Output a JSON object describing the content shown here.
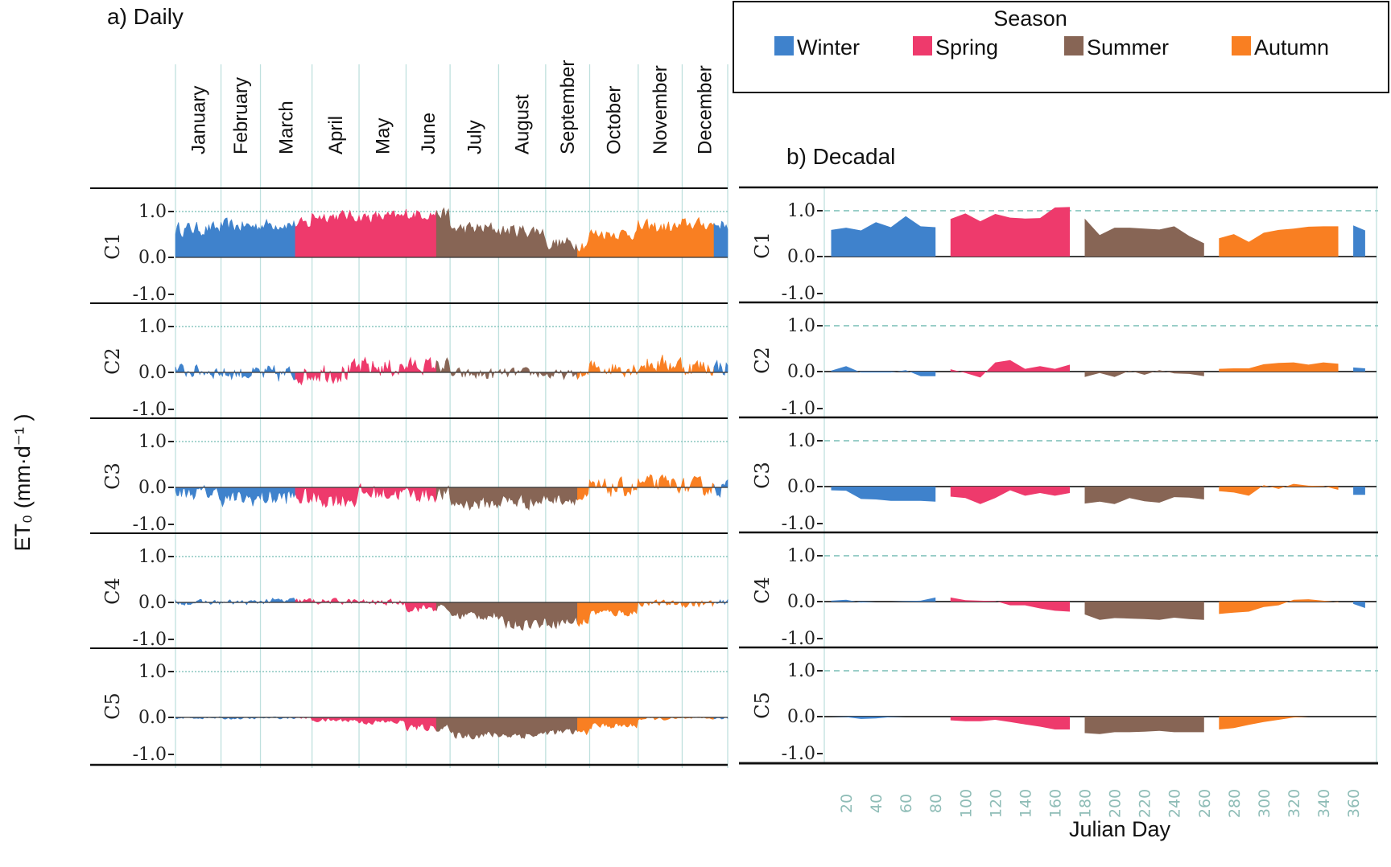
{
  "chart_data": {
    "type": "area",
    "legend": {
      "title": "Season",
      "placement": "top-right",
      "entries": [
        {
          "name": "Winter",
          "color": "#3f82cc"
        },
        {
          "name": "Spring",
          "color": "#ee3a6c"
        },
        {
          "name": "Summer",
          "color": "#876555"
        },
        {
          "name": "Autumn",
          "color": "#f97f22"
        }
      ]
    },
    "ylabel": "ET₀ (mm·d⁻¹ )",
    "components": [
      "C1",
      "C2",
      "C3",
      "C4",
      "C5"
    ],
    "yticks": [
      "1.0",
      "0.0",
      "-1.0"
    ],
    "ytick_values": [
      1.0,
      0.0,
      -1.0
    ],
    "reference_line": 1.0,
    "daily": {
      "title": "a)  Daily",
      "months": [
        "January",
        "February",
        "March",
        "April",
        "May",
        "June",
        "July",
        "August",
        "September",
        "October",
        "November",
        "December"
      ],
      "month_gridlines_day": [
        1,
        31,
        57,
        91,
        122,
        153,
        182,
        214,
        245,
        274,
        306,
        335,
        365
      ],
      "season_bounds_day": [
        {
          "season": "Winter",
          "start": 1,
          "end": 80
        },
        {
          "season": "Spring",
          "start": 80,
          "end": 173
        },
        {
          "season": "Summer",
          "start": 173,
          "end": 266
        },
        {
          "season": "Autumn",
          "start": 266,
          "end": 356
        },
        {
          "season": "Winter",
          "start": 356,
          "end": 365
        }
      ],
      "note": "approximate monthly mean level and day-to-day noise amplitude read from the daily series",
      "series": [
        {
          "name": "C1",
          "monthly_mean": [
            0.62,
            0.68,
            0.72,
            0.9,
            0.88,
            0.95,
            0.62,
            0.58,
            0.3,
            0.52,
            0.65,
            0.72
          ],
          "noise": [
            0.14,
            0.14,
            0.12,
            0.12,
            0.12,
            0.12,
            0.14,
            0.14,
            0.14,
            0.12,
            0.14,
            0.12
          ]
        },
        {
          "name": "C2",
          "monthly_mean": [
            0.03,
            -0.02,
            -0.05,
            0.02,
            0.1,
            0.15,
            -0.05,
            -0.02,
            -0.06,
            0.1,
            0.18,
            0.12
          ],
          "noise": [
            0.14,
            0.14,
            0.18,
            0.22,
            0.2,
            0.16,
            0.12,
            0.1,
            0.1,
            0.16,
            0.18,
            0.18
          ]
        },
        {
          "name": "C3",
          "monthly_mean": [
            -0.12,
            -0.25,
            -0.22,
            -0.25,
            -0.12,
            -0.15,
            -0.35,
            -0.3,
            -0.25,
            -0.02,
            0.08,
            0.0
          ],
          "noise": [
            0.14,
            0.16,
            0.18,
            0.18,
            0.16,
            0.16,
            0.14,
            0.16,
            0.12,
            0.18,
            0.16,
            0.18
          ]
        },
        {
          "name": "C4",
          "monthly_mean": [
            0.0,
            0.0,
            0.03,
            0.02,
            0.0,
            -0.12,
            -0.28,
            -0.45,
            -0.42,
            -0.22,
            -0.02,
            -0.03
          ],
          "noise": [
            0.05,
            0.05,
            0.06,
            0.06,
            0.06,
            0.08,
            0.1,
            0.12,
            0.12,
            0.08,
            0.06,
            0.08
          ]
        },
        {
          "name": "C5",
          "monthly_mean": [
            -0.01,
            -0.02,
            -0.01,
            -0.06,
            -0.1,
            -0.22,
            -0.38,
            -0.38,
            -0.32,
            -0.18,
            -0.03,
            -0.02
          ],
          "noise": [
            0.02,
            0.02,
            0.02,
            0.04,
            0.05,
            0.07,
            0.08,
            0.08,
            0.07,
            0.06,
            0.03,
            0.02
          ]
        }
      ]
    },
    "decadal": {
      "title": "b)  Decadal",
      "xlabel": "Julian Day",
      "xlim": [
        0,
        372
      ],
      "xticks": [
        20,
        40,
        60,
        80,
        100,
        120,
        140,
        160,
        180,
        200,
        220,
        240,
        260,
        280,
        300,
        320,
        340,
        360
      ],
      "segments": [
        {
          "season": "Winter",
          "x": [
            10,
            20,
            30,
            40,
            50,
            60,
            70,
            80
          ]
        },
        {
          "season": "Spring",
          "x": [
            90,
            100,
            110,
            120,
            130,
            140,
            150,
            160,
            170
          ]
        },
        {
          "season": "Summer",
          "x": [
            180,
            190,
            200,
            210,
            220,
            230,
            240,
            250,
            260
          ]
        },
        {
          "season": "Autumn",
          "x": [
            270,
            280,
            290,
            300,
            310,
            320,
            330,
            340,
            350
          ]
        },
        {
          "season": "Winter",
          "x": [
            360,
            368
          ]
        }
      ],
      "series": [
        {
          "name": "C1",
          "values": [
            [
              0.58,
              0.63,
              0.57,
              0.75,
              0.64,
              0.88,
              0.66,
              0.64
            ],
            [
              0.82,
              0.94,
              0.77,
              0.93,
              0.85,
              0.83,
              0.84,
              1.07,
              1.08
            ],
            [
              0.83,
              0.47,
              0.63,
              0.63,
              0.61,
              0.59,
              0.66,
              0.45,
              0.29
            ],
            [
              0.4,
              0.49,
              0.32,
              0.52,
              0.58,
              0.61,
              0.65,
              0.66,
              0.66
            ],
            [
              0.68,
              0.57
            ]
          ]
        },
        {
          "name": "C2",
          "values": [
            [
              0.02,
              0.12,
              -0.02,
              -0.02,
              -0.02,
              0.03,
              -0.1,
              -0.1
            ],
            [
              0.05,
              -0.03,
              -0.13,
              0.2,
              0.25,
              0.06,
              0.12,
              0.06,
              0.15
            ],
            [
              -0.12,
              -0.03,
              -0.12,
              0.02,
              -0.07,
              0.03,
              -0.04,
              -0.05,
              -0.1
            ],
            [
              0.06,
              0.07,
              0.07,
              0.16,
              0.19,
              0.2,
              0.15,
              0.2,
              0.17
            ],
            [
              0.09,
              0.07
            ]
          ]
        },
        {
          "name": "C3",
          "values": [
            [
              -0.08,
              -0.09,
              -0.27,
              -0.28,
              -0.31,
              -0.31,
              -0.31,
              -0.33
            ],
            [
              -0.22,
              -0.25,
              -0.38,
              -0.25,
              -0.08,
              -0.2,
              -0.14,
              -0.2,
              -0.14
            ],
            [
              -0.37,
              -0.33,
              -0.38,
              -0.25,
              -0.32,
              -0.35,
              -0.23,
              -0.24,
              -0.28
            ],
            [
              -0.1,
              -0.13,
              -0.2,
              0.03,
              -0.05,
              0.06,
              0.02,
              0.01,
              -0.07
            ],
            [
              -0.18,
              -0.18
            ]
          ]
        },
        {
          "name": "C4",
          "values": [
            [
              0.02,
              0.04,
              -0.02,
              0.0,
              0.0,
              0.01,
              0.02,
              0.09
            ],
            [
              0.09,
              0.03,
              0.02,
              0.01,
              -0.08,
              -0.08,
              -0.15,
              -0.2,
              -0.22
            ],
            [
              -0.28,
              -0.4,
              -0.36,
              -0.37,
              -0.38,
              -0.4,
              -0.35,
              -0.38,
              -0.4
            ],
            [
              -0.27,
              -0.24,
              -0.22,
              -0.12,
              -0.08,
              0.04,
              0.05,
              0.02,
              -0.01
            ],
            [
              -0.05,
              -0.14
            ]
          ]
        },
        {
          "name": "C5",
          "values": [
            [
              0.0,
              -0.01,
              -0.05,
              -0.04,
              -0.01,
              0.0,
              0.0,
              0.0
            ],
            [
              -0.08,
              -0.1,
              -0.1,
              -0.07,
              -0.12,
              -0.17,
              -0.22,
              -0.28,
              -0.28
            ],
            [
              -0.36,
              -0.38,
              -0.34,
              -0.34,
              -0.33,
              -0.31,
              -0.34,
              -0.34,
              -0.34
            ],
            [
              -0.28,
              -0.25,
              -0.18,
              -0.12,
              -0.07,
              -0.02,
              0.0,
              0.0,
              0.0
            ],
            [
              0.0,
              0.0
            ]
          ]
        }
      ]
    }
  }
}
